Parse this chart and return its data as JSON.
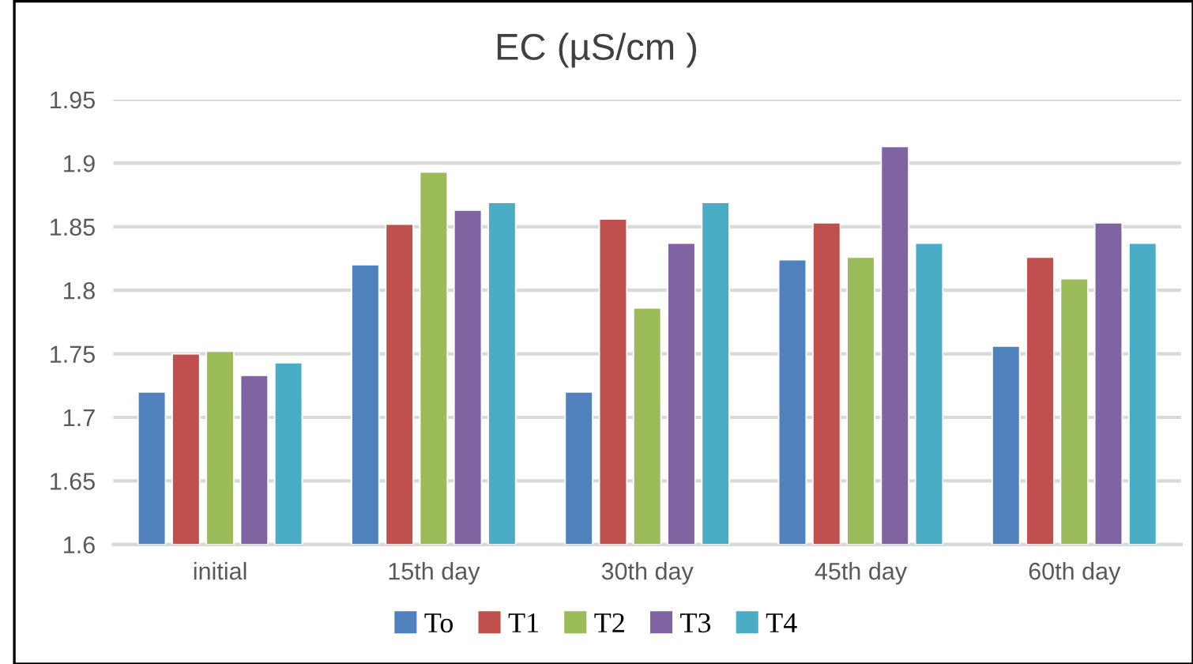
{
  "chart_data": {
    "type": "bar",
    "title": "EC (µS/cm )",
    "categories": [
      "initial",
      "15th day",
      "30th day",
      "45th day",
      "60th day"
    ],
    "series": [
      {
        "name": "To",
        "color": "#4f81bd",
        "values": [
          1.72,
          1.82,
          1.72,
          1.824,
          1.756
        ]
      },
      {
        "name": "T1",
        "color": "#c0504d",
        "values": [
          1.75,
          1.852,
          1.856,
          1.853,
          1.826
        ]
      },
      {
        "name": "T2",
        "color": "#9bbb59",
        "values": [
          1.752,
          1.893,
          1.786,
          1.826,
          1.809
        ]
      },
      {
        "name": "T3",
        "color": "#8064a2",
        "values": [
          1.733,
          1.863,
          1.837,
          1.913,
          1.853
        ]
      },
      {
        "name": "T4",
        "color": "#4bacc6",
        "values": [
          1.743,
          1.869,
          1.869,
          1.837,
          1.837
        ]
      }
    ],
    "ylim": [
      1.6,
      1.95
    ],
    "yticks": [
      1.6,
      1.65,
      1.7,
      1.75,
      1.8,
      1.85,
      1.9,
      1.95
    ],
    "grid": "y",
    "legend": "bottom"
  }
}
